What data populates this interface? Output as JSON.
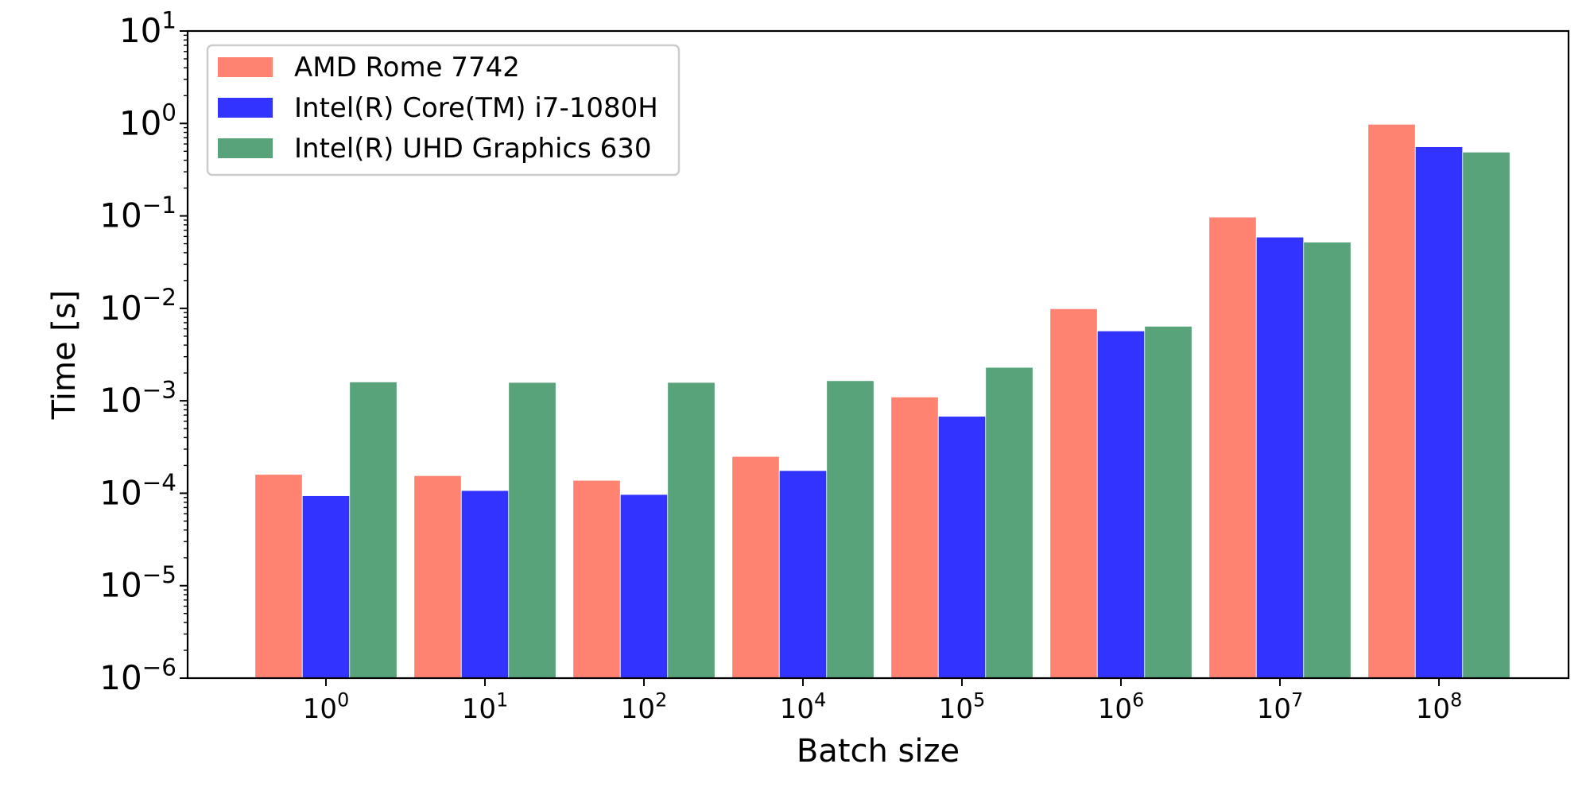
{
  "chart_data": {
    "type": "bar",
    "title": "",
    "xlabel": "Batch size",
    "ylabel": "Time [s]",
    "yscale": "log",
    "ylim": [
      1e-06,
      10
    ],
    "grid": false,
    "legend_position": "top-left",
    "categories": [
      {
        "base": "10",
        "exp": "0"
      },
      {
        "base": "10",
        "exp": "1"
      },
      {
        "base": "10",
        "exp": "2"
      },
      {
        "base": "10",
        "exp": "4"
      },
      {
        "base": "10",
        "exp": "5"
      },
      {
        "base": "10",
        "exp": "6"
      },
      {
        "base": "10",
        "exp": "7"
      },
      {
        "base": "10",
        "exp": "8"
      }
    ],
    "y_ticks": [
      {
        "base": "10",
        "exp": "1"
      },
      {
        "base": "10",
        "exp": "0"
      },
      {
        "base": "10",
        "exp": "−1"
      },
      {
        "base": "10",
        "exp": "−2"
      },
      {
        "base": "10",
        "exp": "−3"
      },
      {
        "base": "10",
        "exp": "−4"
      },
      {
        "base": "10",
        "exp": "−5"
      },
      {
        "base": "10",
        "exp": "−6"
      }
    ],
    "series": [
      {
        "name": "AMD Rome 7742",
        "color": "#ff8370",
        "values": [
          0.00016,
          0.000155,
          0.000138,
          0.00025,
          0.0011,
          0.0099,
          0.097,
          0.98
        ]
      },
      {
        "name": "Intel(R) Core(TM) i7-1080H",
        "color": "#3333ff",
        "values": [
          9.4e-05,
          0.000107,
          9.7e-05,
          0.000176,
          0.00068,
          0.0057,
          0.059,
          0.56
        ]
      },
      {
        "name": "Intel(R) UHD Graphics 630",
        "color": "#58a37a",
        "values": [
          0.0016,
          0.00158,
          0.00158,
          0.00165,
          0.0023,
          0.0064,
          0.052,
          0.49
        ]
      }
    ]
  }
}
